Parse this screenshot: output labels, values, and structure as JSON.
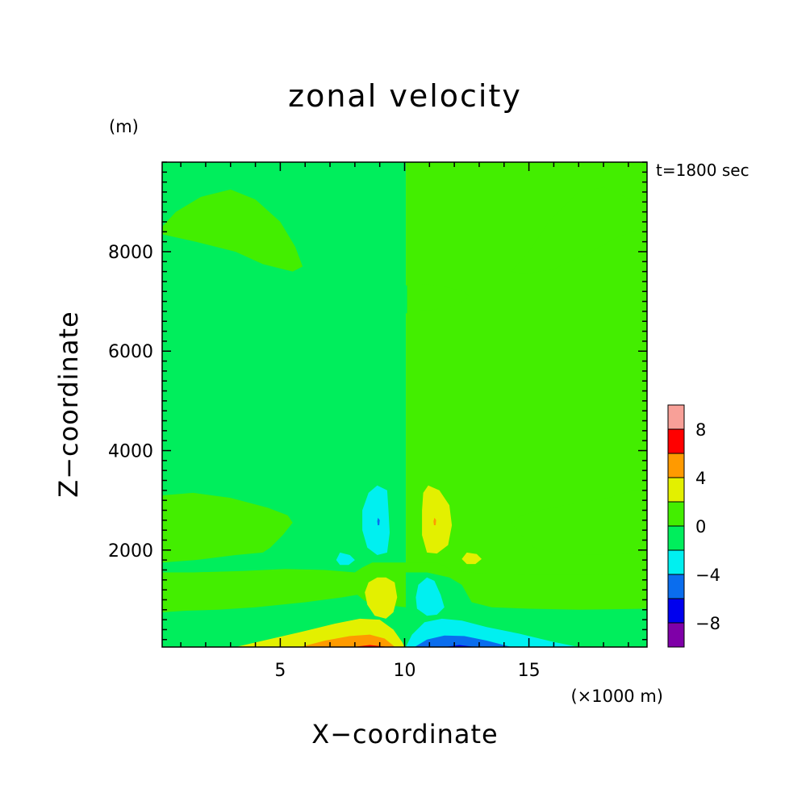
{
  "chart_data": {
    "type": "heatmap",
    "title": "zonal velocity",
    "xlabel": "X−coordinate",
    "ylabel": "Z−coordinate",
    "x_unit": "(×1000 m)",
    "y_unit": "(m)",
    "time_label": "t=1800 sec",
    "xlim": [
      0.25,
      19.75
    ],
    "ylim": [
      50,
      9800
    ],
    "x_ticks": [
      5,
      10,
      15
    ],
    "x_tick_labels": [
      "5",
      "10",
      "15"
    ],
    "y_ticks": [
      2000,
      4000,
      6000,
      8000
    ],
    "y_tick_labels": [
      "2000",
      "4000",
      "6000",
      "8000"
    ],
    "background_value_range": [
      -2,
      0
    ],
    "colorbar": {
      "levels": [
        -10,
        -8,
        -6,
        -4,
        -2,
        0,
        2,
        4,
        6,
        8,
        10
      ],
      "tick_values": [
        -8,
        -4,
        0,
        4,
        8
      ],
      "tick_labels": [
        "−8",
        "−4",
        "0",
        "4",
        "8"
      ],
      "colors": [
        "#7f00a8",
        "#0000ee",
        "#0a6dee",
        "#00f0f0",
        "#00ee5c",
        "#43ee00",
        "#e3f000",
        "#ff9a00",
        "#ff0000",
        "#f8a098"
      ]
    },
    "regions": [
      {
        "name": "upper-left lobe",
        "range": [
          0,
          2
        ],
        "points": [
          [
            0.25,
            8.5
          ],
          [
            0.8,
            8.8
          ],
          [
            1.8,
            9.1
          ],
          [
            3,
            9.25
          ],
          [
            4,
            9.05
          ],
          [
            5,
            8.6
          ],
          [
            5.6,
            8.1
          ],
          [
            5.9,
            7.7
          ],
          [
            5.5,
            7.6
          ],
          [
            4.3,
            7.75
          ],
          [
            3.2,
            8.0
          ],
          [
            1.6,
            8.2
          ],
          [
            0.7,
            8.3
          ],
          [
            0.25,
            8.35
          ]
        ]
      },
      {
        "name": "upper-right lobe",
        "range": [
          0,
          2
        ],
        "points": [
          [
            19.75,
            8.75
          ],
          [
            19.1,
            9.05
          ],
          [
            18,
            9.3
          ],
          [
            17,
            9.2
          ],
          [
            15.8,
            8.6
          ],
          [
            15,
            8.0
          ],
          [
            14.3,
            7.6
          ],
          [
            14.8,
            7.55
          ],
          [
            16,
            7.65
          ],
          [
            17.3,
            7.95
          ],
          [
            18.6,
            8.3
          ],
          [
            19.75,
            8.5
          ]
        ]
      },
      {
        "name": "mid-level lens right",
        "range": [
          0,
          2
        ],
        "points": [
          [
            10.1,
            7.35
          ],
          [
            10.7,
            7.35
          ],
          [
            11.6,
            7.3
          ],
          [
            12.4,
            7.2
          ],
          [
            12.6,
            7.1
          ],
          [
            12.1,
            6.93
          ],
          [
            11.1,
            6.83
          ],
          [
            10.1,
            6.8
          ]
        ]
      },
      {
        "name": "mid-level lens left",
        "range": [
          -2,
          0
        ],
        "points": [
          [
            10.1,
            7.32
          ],
          [
            9.4,
            7.38
          ],
          [
            8.8,
            7.35
          ],
          [
            8.1,
            7.27
          ],
          [
            7.6,
            7.15
          ],
          [
            8.2,
            6.88
          ],
          [
            9.1,
            6.8
          ],
          [
            10.1,
            6.76
          ]
        ]
      },
      {
        "name": "left band 2500 m",
        "range": [
          0,
          2
        ],
        "points": [
          [
            0.25,
            3.1
          ],
          [
            1.5,
            3.15
          ],
          [
            3,
            3.05
          ],
          [
            4.5,
            2.85
          ],
          [
            5.3,
            2.7
          ],
          [
            5.5,
            2.55
          ],
          [
            5.1,
            2.3
          ],
          [
            4.6,
            2.05
          ],
          [
            4.3,
            1.95
          ],
          [
            3.2,
            1.9
          ],
          [
            1.6,
            1.8
          ],
          [
            0.25,
            1.75
          ]
        ]
      },
      {
        "name": "right band 2500 m",
        "range": [
          0,
          2
        ],
        "points": [
          [
            19.75,
            3.2
          ],
          [
            19.2,
            3.2
          ],
          [
            18.2,
            3.05
          ],
          [
            17,
            2.95
          ],
          [
            15.6,
            2.82
          ],
          [
            14.7,
            2.7
          ],
          [
            14.3,
            2.55
          ],
          [
            14.7,
            2.3
          ],
          [
            15.2,
            2.05
          ],
          [
            16,
            1.95
          ],
          [
            17.4,
            1.9
          ],
          [
            18.8,
            1.92
          ],
          [
            19.75,
            1.95
          ]
        ]
      },
      {
        "name": "low-level layer",
        "range": [
          0,
          2
        ],
        "points": [
          [
            0.25,
            1.55
          ],
          [
            1.5,
            1.55
          ],
          [
            3.5,
            1.58
          ],
          [
            5.2,
            1.62
          ],
          [
            6.8,
            1.6
          ],
          [
            8.0,
            1.55
          ],
          [
            8.3,
            1.65
          ],
          [
            8.7,
            1.75
          ],
          [
            10.05,
            1.75
          ],
          [
            10.05,
            0.05
          ],
          [
            0.25,
            0.05
          ]
        ]
      },
      {
        "name": "right low-level layer",
        "range": [
          0,
          2
        ],
        "points": [
          [
            10.05,
            1.75
          ],
          [
            11.3,
            1.75
          ],
          [
            11.9,
            1.6
          ],
          [
            13,
            1.53
          ],
          [
            15,
            1.5
          ],
          [
            17.5,
            1.5
          ],
          [
            19.75,
            1.52
          ],
          [
            19.75,
            0.05
          ],
          [
            10.05,
            0.05
          ]
        ]
      },
      {
        "name": "surface layer left",
        "range": [
          -2,
          0
        ],
        "points": [
          [
            0.25,
            0.75
          ],
          [
            1.2,
            0.78
          ],
          [
            2.5,
            0.8
          ],
          [
            4,
            0.85
          ],
          [
            6,
            0.95
          ],
          [
            7.5,
            1.05
          ],
          [
            8.1,
            1.1
          ],
          [
            8.4,
            0.98
          ],
          [
            9.5,
            0.88
          ],
          [
            10.05,
            0.85
          ],
          [
            10.05,
            0.05
          ],
          [
            0.25,
            0.05
          ]
        ]
      },
      {
        "name": "right core",
        "range": [
          -2,
          0
        ],
        "points": [
          [
            10.05,
            1.55
          ],
          [
            10.9,
            1.55
          ],
          [
            11.8,
            1.45
          ],
          [
            12.3,
            1.3
          ],
          [
            12.7,
            0.95
          ],
          [
            13.5,
            0.85
          ],
          [
            15,
            0.82
          ],
          [
            17,
            0.8
          ],
          [
            19.75,
            0.82
          ],
          [
            19.75,
            0.05
          ],
          [
            10.05,
            0.05
          ]
        ]
      },
      {
        "name": "near-surface positive wedge",
        "range": [
          2,
          4
        ],
        "points": [
          [
            3.2,
            0.05
          ],
          [
            4.5,
            0.2
          ],
          [
            5.8,
            0.35
          ],
          [
            7.2,
            0.52
          ],
          [
            8.2,
            0.62
          ],
          [
            9.0,
            0.6
          ],
          [
            9.55,
            0.4
          ],
          [
            9.9,
            0.15
          ],
          [
            10.0,
            0.05
          ]
        ]
      },
      {
        "name": "near-surface orange core",
        "range": [
          4,
          6
        ],
        "points": [
          [
            5.8,
            0.05
          ],
          [
            6.8,
            0.18
          ],
          [
            7.8,
            0.27
          ],
          [
            8.6,
            0.3
          ],
          [
            9.2,
            0.22
          ],
          [
            9.55,
            0.08
          ],
          [
            9.6,
            0.05
          ]
        ]
      },
      {
        "name": "near-surface red core",
        "range": [
          6,
          8
        ],
        "points": [
          [
            7.9,
            0.05
          ],
          [
            8.6,
            0.09
          ],
          [
            9.2,
            0.06
          ],
          [
            9.3,
            0.05
          ]
        ]
      },
      {
        "name": "near-surface negative wedge",
        "range": [
          -4,
          -2
        ],
        "points": [
          [
            10.05,
            0.05
          ],
          [
            10.3,
            0.3
          ],
          [
            10.8,
            0.55
          ],
          [
            11.5,
            0.62
          ],
          [
            12.3,
            0.58
          ],
          [
            13.3,
            0.45
          ],
          [
            14.6,
            0.32
          ],
          [
            16,
            0.15
          ],
          [
            17,
            0.05
          ]
        ]
      },
      {
        "name": "near-surface light-blue core",
        "range": [
          -6,
          -4
        ],
        "points": [
          [
            10.4,
            0.05
          ],
          [
            10.9,
            0.2
          ],
          [
            11.6,
            0.28
          ],
          [
            12.4,
            0.27
          ],
          [
            13.3,
            0.18
          ],
          [
            14.3,
            0.05
          ]
        ]
      },
      {
        "name": "near-surface blue core",
        "range": [
          -8,
          -6
        ],
        "points": [
          [
            11.6,
            0.05
          ],
          [
            12.2,
            0.09
          ],
          [
            12.7,
            0.06
          ],
          [
            12.9,
            0.05
          ]
        ]
      },
      {
        "name": "left low-level positive cell",
        "range": [
          2,
          4
        ],
        "points": [
          [
            9.25,
            1.45
          ],
          [
            9.6,
            1.35
          ],
          [
            9.7,
            1.05
          ],
          [
            9.55,
            0.75
          ],
          [
            9.25,
            0.62
          ],
          [
            8.8,
            0.68
          ],
          [
            8.5,
            0.9
          ],
          [
            8.4,
            1.15
          ],
          [
            8.55,
            1.35
          ],
          [
            8.9,
            1.45
          ]
        ]
      },
      {
        "name": "right low-level negative cell",
        "range": [
          -4,
          -2
        ],
        "points": [
          [
            10.9,
            1.45
          ],
          [
            11.2,
            1.38
          ],
          [
            11.45,
            1.1
          ],
          [
            11.6,
            0.85
          ],
          [
            11.3,
            0.7
          ],
          [
            10.9,
            0.68
          ],
          [
            10.5,
            0.82
          ],
          [
            10.45,
            1.05
          ],
          [
            10.55,
            1.3
          ]
        ]
      },
      {
        "name": "left 2500 m negative cell",
        "range": [
          -4,
          -2
        ],
        "points": [
          [
            8.9,
            3.3
          ],
          [
            9.3,
            3.2
          ],
          [
            9.35,
            2.8
          ],
          [
            9.4,
            2.35
          ],
          [
            9.3,
            1.95
          ],
          [
            8.9,
            1.9
          ],
          [
            8.5,
            2.05
          ],
          [
            8.3,
            2.4
          ],
          [
            8.3,
            2.8
          ],
          [
            8.55,
            3.15
          ]
        ]
      },
      {
        "name": "right 2500 m positive cell",
        "range": [
          2,
          4
        ],
        "points": [
          [
            10.95,
            3.3
          ],
          [
            11.4,
            3.2
          ],
          [
            11.8,
            2.9
          ],
          [
            11.9,
            2.5
          ],
          [
            11.75,
            2.1
          ],
          [
            11.3,
            1.93
          ],
          [
            10.9,
            1.95
          ],
          [
            10.7,
            2.3
          ],
          [
            10.7,
            2.8
          ],
          [
            10.75,
            3.15
          ]
        ]
      },
      {
        "name": "left small negative blob",
        "range": [
          -4,
          -2
        ],
        "points": [
          [
            7.4,
            1.95
          ],
          [
            7.8,
            1.9
          ],
          [
            8.0,
            1.8
          ],
          [
            7.75,
            1.7
          ],
          [
            7.4,
            1.7
          ],
          [
            7.25,
            1.8
          ]
        ]
      },
      {
        "name": "right small positive blob",
        "range": [
          2,
          4
        ],
        "points": [
          [
            12.5,
            1.95
          ],
          [
            12.9,
            1.92
          ],
          [
            13.1,
            1.82
          ],
          [
            12.85,
            1.72
          ],
          [
            12.5,
            1.72
          ],
          [
            12.3,
            1.82
          ]
        ]
      },
      {
        "name": "left tiny core",
        "range": [
          -6,
          -4
        ],
        "points": [
          [
            8.93,
            2.65
          ],
          [
            9.0,
            2.6
          ],
          [
            8.98,
            2.5
          ],
          [
            8.92,
            2.5
          ],
          [
            8.9,
            2.58
          ]
        ]
      },
      {
        "name": "right tiny core",
        "range": [
          4,
          6
        ],
        "points": [
          [
            11.2,
            2.65
          ],
          [
            11.27,
            2.6
          ],
          [
            11.25,
            2.5
          ],
          [
            11.18,
            2.5
          ],
          [
            11.16,
            2.58
          ]
        ]
      }
    ]
  }
}
